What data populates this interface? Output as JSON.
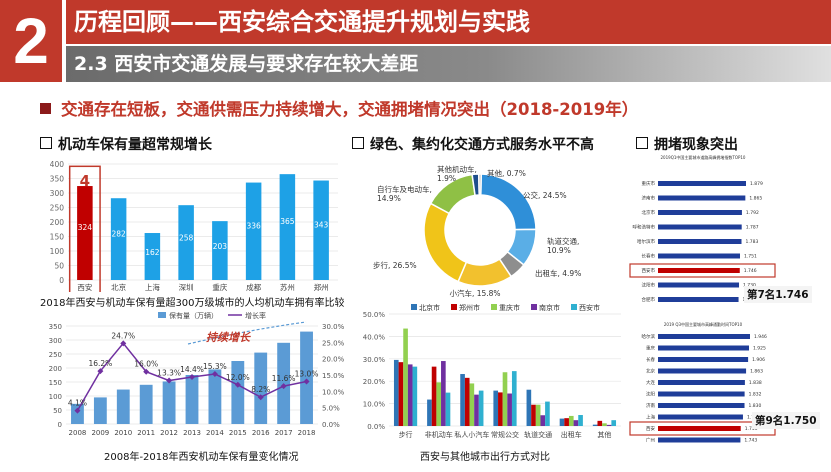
{
  "header": {
    "number": "2",
    "title": "历程回顾——西安综合交通提升规划与实践",
    "subtitle": "2.3 西安市交通发展与要求存在较大差距"
  },
  "section_title": "交通存在短板，交通供需压力持续增大，交通拥堵情况突出（2018-2019年）",
  "panels": {
    "p1_title": "机动车保有量超常规增长",
    "p1_caption": "2018年西安与机动车保有量超300万级城市的人均机动车拥有率比较",
    "p1_highlight": "4",
    "p2_caption": "2008年-2018年西安机动车保有量变化情况",
    "p2_annotation": "持续增长",
    "p3_title": "绿色、集约化交通方式服务水平不高",
    "p4_caption": "西安与其他城市出行方式对比",
    "p5_title": "拥堵现象突出",
    "rank1_title": "2019Q1中国主要城市道路高峰拥堵指数TOP10",
    "rank1_badge": "第7名1.746",
    "rank2_title": "2019 Q3中国主要城市高峰通勤时间TOP10",
    "rank2_badge": "第9名1.750"
  },
  "chart_data": [
    {
      "type": "bar",
      "id": "ownership_per_capita",
      "categories": [
        "西安",
        "北京",
        "上海",
        "深圳",
        "重庆",
        "成都",
        "苏州",
        "郑州"
      ],
      "values": [
        324,
        282,
        162,
        258,
        203,
        336,
        365,
        343
      ],
      "ylim": [
        0,
        400
      ],
      "yticks": [
        0,
        50,
        100,
        150,
        200,
        250,
        300,
        350,
        400
      ],
      "colors": {
        "bar": "#1ea1e6",
        "highlight": "#c00000"
      }
    },
    {
      "type": "bar+line",
      "id": "xian_growth",
      "categories": [
        "2008",
        "2009",
        "2010",
        "2011",
        "2012",
        "2013",
        "2014",
        "2015",
        "2016",
        "2017",
        "2018"
      ],
      "series": [
        {
          "name": "保有量（万辆）",
          "type": "bar",
          "values": [
            72,
            95,
            123,
            140,
            152,
            175,
            195,
            225,
            255,
            290,
            330
          ]
        },
        {
          "name": "增长率",
          "type": "line",
          "values": [
            4.1,
            16.2,
            24.7,
            16.0,
            13.3,
            14.4,
            15.3,
            12.0,
            8.2,
            11.6,
            13.0
          ],
          "labels": [
            "4.1%",
            "16.2%",
            "24.7%",
            "16.0%",
            "13.3%",
            "14.4%",
            "15.3%",
            "12.0%",
            "8.2%",
            "11.6%",
            "13.0%"
          ]
        }
      ],
      "yticks_left": [
        "0",
        "50",
        "100",
        "150",
        "200",
        "250",
        "300",
        "350"
      ],
      "yticks_right": [
        "0.0%",
        "5.0%",
        "10.0%",
        "15.0%",
        "20.0%",
        "25.0%",
        "30.0%"
      ],
      "colors": {
        "bar": "#5b9bd5",
        "line": "#7030a0"
      }
    },
    {
      "type": "pie",
      "id": "xian_mode_share",
      "labels": [
        "公交",
        "轨道交通",
        "出租车",
        "小汽车",
        "步行",
        "自行车及电动车",
        "其他机动车",
        "其他"
      ],
      "values": [
        24.5,
        10.9,
        4.9,
        15.8,
        26.5,
        14.9,
        1.9,
        0.7
      ],
      "label_texts": [
        "公交, 24.5%",
        "轨道交通,\n10.9%",
        "出租车, 4.9%",
        "小汽车, 15.8%",
        "步行, 26.5%",
        "自行车及电动车,\n14.9%",
        "其他机动车,\n1.9%",
        "其他, 0.7%"
      ],
      "colors": [
        "#2f8fd8",
        "#5aaee6",
        "#8e8e8e",
        "#f2c12e",
        "#f0c419",
        "#8fc045",
        "#1e4e8c",
        "#b0b0b0"
      ]
    },
    {
      "type": "bar",
      "id": "city_mode_compare",
      "categories": [
        "步行",
        "非机动车",
        "私人小汽车",
        "常规公交",
        "轨道交通",
        "出租车",
        "其他"
      ],
      "series": [
        {
          "name": "北京市",
          "values": [
            29.5,
            11.8,
            23.2,
            15.8,
            16.2,
            3.3,
            0.6
          ]
        },
        {
          "name": "郑州市",
          "values": [
            28.5,
            26.5,
            21.5,
            15.0,
            9.5,
            3.5,
            2.3
          ]
        },
        {
          "name": "重庆市",
          "values": [
            43.5,
            19.5,
            19.0,
            24.0,
            9.5,
            4.5,
            1.2
          ]
        },
        {
          "name": "南京市",
          "values": [
            27.5,
            29.0,
            14.0,
            14.5,
            4.8,
            2.6,
            0.5
          ]
        },
        {
          "name": "西安市",
          "values": [
            26.5,
            14.9,
            15.8,
            24.5,
            10.9,
            4.9,
            2.6
          ]
        }
      ],
      "ylim": [
        0,
        50
      ],
      "yticks": [
        "0.0%",
        "10.0%",
        "20.0%",
        "30.0%",
        "40.0%",
        "50.0%"
      ],
      "colors": [
        "#2e75b6",
        "#c00000",
        "#92d050",
        "#7030a0",
        "#2fb0d0"
      ]
    },
    {
      "type": "bar",
      "id": "congestion_rank_q1",
      "title": "2019Q1中国主要城市道路高峰拥堵指数TOP10",
      "categories": [
        "重庆市",
        "济南市",
        "北京市",
        "呼和浩特市",
        "哈尔滨市",
        "长春市",
        "西安市",
        "沈阳市",
        "合肥市"
      ],
      "values": [
        1.879,
        1.865,
        1.792,
        1.787,
        1.783,
        1.751,
        1.746,
        1.73,
        1.72
      ],
      "colors": {
        "bar": "#1f3d99",
        "highlight": "#c00000"
      }
    },
    {
      "type": "bar",
      "id": "commute_rank_q3",
      "title": "2019 Q3中国主要城市高峰通勤时间TOP10",
      "categories": [
        "哈尔滨",
        "重庆",
        "长春",
        "北京",
        "大连",
        "沈阳",
        "济南",
        "上海",
        "西安",
        "广州"
      ],
      "values": [
        1.946,
        1.925,
        1.906,
        1.863,
        1.838,
        1.832,
        1.83,
        1.797,
        1.75,
        1.743
      ],
      "colors": {
        "bar": "#1f3d99",
        "highlight": "#c00000"
      }
    }
  ]
}
